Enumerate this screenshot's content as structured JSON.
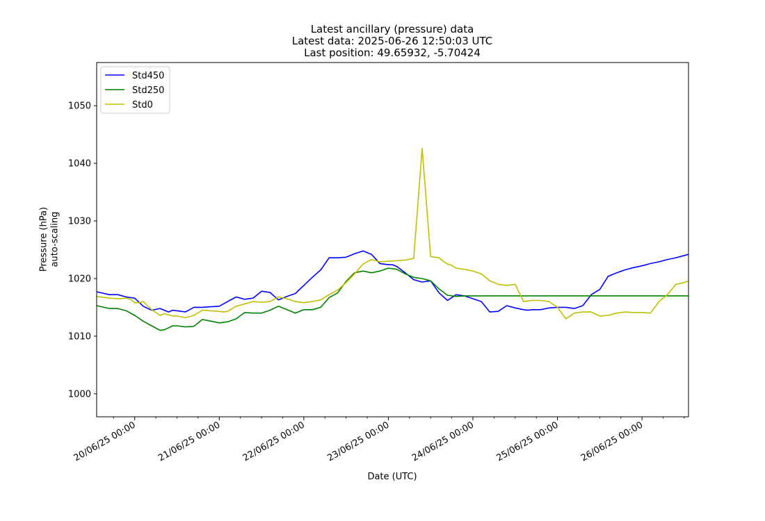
{
  "chart_data": {
    "type": "line",
    "title": "Latest ancillary (pressure) data",
    "subtitle_lines": [
      "Latest data: 2025-06-26 12:50:03 UTC",
      "Last position: 49.65932, -5.70424"
    ],
    "xlabel": "Date (UTC)",
    "ylabel_lines": [
      "Pressure (hPa)",
      "auto-scaling"
    ],
    "ylim": [
      996,
      1057.5
    ],
    "xlim": [
      -0.45,
      6.55
    ],
    "y_ticks": [
      1000,
      1010,
      1020,
      1030,
      1040,
      1050
    ],
    "x_ticks": [
      0,
      1,
      2,
      3,
      4,
      5,
      6
    ],
    "x_tick_labels": [
      "20/06/25 00:00",
      "21/06/25 00:00",
      "22/06/25 00:00",
      "23/06/25 00:00",
      "24/06/25 00:00",
      "25/06/25 00:00",
      "26/06/25 00:00"
    ],
    "x_minor_ticks": [
      -0.25,
      0.25,
      0.5,
      0.75,
      1.25,
      1.5,
      1.75,
      2.25,
      2.5,
      2.75,
      3.25,
      3.5,
      3.75,
      4.25,
      4.5,
      4.75,
      5.25,
      5.5,
      5.75,
      6.25,
      6.5
    ],
    "legend_placement": "upper-left",
    "grid": false,
    "series": [
      {
        "name": "Std450",
        "color": "#0000ff",
        "x": [
          -0.45,
          -0.3,
          -0.2,
          -0.1,
          0,
          0.1,
          0.2,
          0.3,
          0.4,
          0.45,
          0.5,
          0.55,
          0.6,
          0.7,
          0.8,
          0.9,
          1,
          1.1,
          1.2,
          1.3,
          1.4,
          1.5,
          1.6,
          1.7,
          1.8,
          1.9,
          2,
          2.1,
          2.2,
          2.3,
          2.4,
          2.5,
          2.6,
          2.7,
          2.8,
          2.9,
          3,
          3.05,
          3.1,
          3.2,
          3.3,
          3.4,
          3.5,
          3.6,
          3.7,
          3.8,
          3.9,
          4,
          4.1,
          4.2,
          4.3,
          4.4,
          4.5,
          4.6,
          4.65,
          4.7,
          4.8,
          4.9,
          5,
          5.1,
          5.2,
          5.3,
          5.4,
          5.5,
          5.6,
          5.7,
          5.8,
          5.9,
          6,
          6.1,
          6.2,
          6.3,
          6.4,
          6.5,
          6.55
        ],
        "y": [
          1017.7,
          1017.2,
          1017.2,
          1016.8,
          1016.6,
          1015.2,
          1014.5,
          1014.8,
          1014.2,
          1014.5,
          1014.4,
          1014.3,
          1014.2,
          1015.0,
          1015.0,
          1015.1,
          1015.2,
          1016.0,
          1016.8,
          1016.4,
          1016.6,
          1017.8,
          1017.6,
          1016.3,
          1016.9,
          1017.4,
          1018.8,
          1020.2,
          1021.5,
          1023.6,
          1023.6,
          1023.7,
          1024.3,
          1024.8,
          1024.2,
          1022.6,
          1022.4,
          1022.4,
          1022.1,
          1021.0,
          1019.8,
          1019.4,
          1019.6,
          1017.5,
          1016.2,
          1017.2,
          1017.0,
          1016.5,
          1016.0,
          1014.2,
          1014.3,
          1015.3,
          1014.9,
          1014.6,
          1014.5,
          1014.6,
          1014.6,
          1014.9,
          1015.0,
          1015.0,
          1014.8,
          1015.3,
          1017.2,
          1018.1,
          1020.4,
          1021.0,
          1021.5,
          1021.9,
          1022.2,
          1022.6,
          1022.9,
          1023.3,
          1023.6,
          1024.0,
          1024.2
        ]
      },
      {
        "name": "Std250",
        "color": "#008000",
        "x": [
          -0.45,
          -0.3,
          -0.2,
          -0.1,
          0,
          0.1,
          0.2,
          0.3,
          0.35,
          0.45,
          0.5,
          0.6,
          0.7,
          0.8,
          0.9,
          1,
          1.1,
          1.2,
          1.3,
          1.4,
          1.5,
          1.6,
          1.7,
          1.8,
          1.9,
          2,
          2.1,
          2.2,
          2.3,
          2.4,
          2.5,
          2.6,
          2.7,
          2.8,
          2.9,
          3,
          3.1,
          3.2,
          3.3,
          3.4,
          3.5,
          3.6,
          3.7,
          3.8,
          3.9,
          4,
          4.1,
          4.2,
          4.3,
          4.4,
          4.5,
          4.6,
          4.7,
          4.8,
          4.9,
          5,
          5.1,
          5.2,
          5.3,
          5.4,
          5.5,
          5.6,
          5.7,
          5.8,
          5.9,
          6,
          6.1,
          6.2,
          6.3,
          6.4,
          6.5,
          6.55
        ],
        "y": [
          1015.3,
          1014.8,
          1014.8,
          1014.4,
          1013.6,
          1012.6,
          1011.8,
          1011.0,
          1011.1,
          1011.8,
          1011.8,
          1011.6,
          1011.7,
          1012.9,
          1012.6,
          1012.3,
          1012.5,
          1013.0,
          1014.1,
          1014.0,
          1014.0,
          1014.5,
          1015.2,
          1014.6,
          1014.0,
          1014.6,
          1014.6,
          1015.0,
          1016.7,
          1017.5,
          1019.5,
          1021.0,
          1021.3,
          1021.0,
          1021.3,
          1021.8,
          1021.6,
          1020.8,
          1020.2,
          1020.0,
          1019.6,
          1018.2,
          1017.1,
          1016.9,
          1017.0,
          1017.0,
          1017.0,
          1017.0,
          1017.0,
          1017.0,
          1017.0,
          1017.0,
          1017.0,
          1017.0,
          1017.0,
          1017.0,
          1017.0,
          1017.0,
          1017.0,
          1017.0,
          1017.0,
          1017.0,
          1017.0,
          1017.0,
          1017.0,
          1017.0,
          1017.0,
          1017.0,
          1017.0,
          1017.0,
          1017.0,
          1017.0
        ]
      },
      {
        "name": "Std0",
        "color": "#bfbf00",
        "x": [
          -0.45,
          -0.3,
          -0.2,
          -0.1,
          -0.05,
          0,
          0.05,
          0.1,
          0.2,
          0.3,
          0.35,
          0.45,
          0.5,
          0.6,
          0.7,
          0.8,
          0.9,
          1,
          1.05,
          1.1,
          1.2,
          1.3,
          1.4,
          1.5,
          1.6,
          1.7,
          1.8,
          1.9,
          2,
          2.1,
          2.2,
          2.3,
          2.4,
          2.5,
          2.6,
          2.7,
          2.8,
          2.9,
          3,
          3.1,
          3.2,
          3.3,
          3.4,
          3.5,
          3.6,
          3.65,
          3.7,
          3.75,
          3.8,
          3.9,
          4,
          4.1,
          4.2,
          4.3,
          4.4,
          4.5,
          4.6,
          4.7,
          4.8,
          4.9,
          5,
          5.1,
          5.2,
          5.3,
          5.4,
          5.5,
          5.6,
          5.7,
          5.8,
          5.9,
          6,
          6.1,
          6.2,
          6.3,
          6.4,
          6.5,
          6.55
        ],
        "y": [
          1016.9,
          1016.6,
          1016.5,
          1016.6,
          1016.4,
          1015.8,
          1015.8,
          1016.0,
          1014.6,
          1013.6,
          1013.9,
          1013.5,
          1013.5,
          1013.2,
          1013.6,
          1014.5,
          1014.4,
          1014.3,
          1014.2,
          1014.3,
          1015.2,
          1015.6,
          1016.0,
          1015.9,
          1016.0,
          1016.8,
          1016.5,
          1016.0,
          1015.8,
          1016.0,
          1016.3,
          1017.2,
          1018.0,
          1019.3,
          1020.8,
          1022.5,
          1023.3,
          1022.9,
          1023.0,
          1023.1,
          1023.2,
          1023.5,
          1042.6,
          1023.8,
          1023.6,
          1023.0,
          1022.5,
          1022.3,
          1021.8,
          1021.6,
          1021.3,
          1020.8,
          1019.6,
          1019.0,
          1018.8,
          1019.0,
          1016.0,
          1016.2,
          1016.2,
          1016.0,
          1015.0,
          1013.0,
          1014.0,
          1014.2,
          1014.2,
          1013.5,
          1013.6,
          1014.0,
          1014.2,
          1014.1,
          1014.1,
          1014.0,
          1016.0,
          1017.2,
          1019.0,
          1019.3,
          1019.6
        ]
      }
    ]
  }
}
